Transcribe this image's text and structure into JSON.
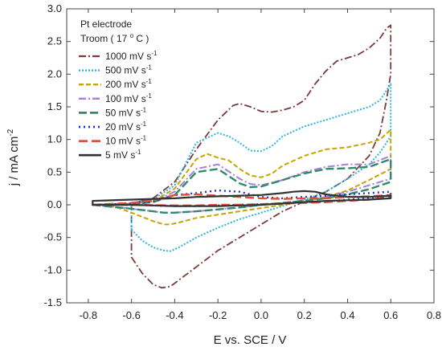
{
  "chart_data": {
    "type": "line",
    "title": "",
    "xlabel": "E vs. SCE / V",
    "ylabel": "j / mA cm",
    "ylabel_sup": "-2",
    "xlim": [
      -0.9,
      0.8
    ],
    "ylim": [
      -1.5,
      3.0
    ],
    "x_ticks": [
      -0.8,
      -0.6,
      -0.4,
      -0.2,
      0.0,
      0.2,
      0.4,
      0.6,
      0.8
    ],
    "x_tick_labels": [
      "-0.8",
      "-0.6",
      "-0.4",
      "-0.2",
      "0.0",
      "0.2",
      "0.4",
      "0.6",
      "0.8"
    ],
    "y_ticks": [
      -1.5,
      -1.0,
      -0.5,
      0.0,
      0.5,
      1.0,
      1.5,
      2.0,
      2.5,
      3.0
    ],
    "y_tick_labels": [
      "-1.5",
      "-1.0",
      "-0.5",
      "0.0",
      "0.5",
      "1.0",
      "1.5",
      "2.0",
      "2.5",
      "3.0"
    ],
    "grid": false,
    "legend_placement": "top-left",
    "legend_header": [
      "Pt electrode",
      "Troom ( 17 ",
      "o",
      " C )"
    ],
    "series": [
      {
        "name": "1000 mV s",
        "name_sup": "-1",
        "color": "#7b3b3b",
        "dash": "9,3,2,3",
        "width": 1.8,
        "x": [
          -0.6,
          -0.55,
          -0.5,
          -0.46,
          -0.42,
          -0.38,
          -0.3,
          -0.2,
          -0.1,
          0.0,
          0.1,
          0.2,
          0.3,
          0.4,
          0.5,
          0.55,
          0.58,
          0.6,
          0.6,
          0.58,
          0.55,
          0.5,
          0.45,
          0.4,
          0.35,
          0.3,
          0.25,
          0.2,
          0.15,
          0.1,
          0.05,
          0.0,
          -0.05,
          -0.1,
          -0.13,
          -0.2,
          -0.3,
          -0.4,
          -0.5,
          -0.6
        ],
        "y": [
          -0.8,
          -1.05,
          -1.22,
          -1.27,
          -1.25,
          -1.15,
          -0.95,
          -0.7,
          -0.5,
          -0.3,
          -0.1,
          0.05,
          0.2,
          0.4,
          0.75,
          1.1,
          1.6,
          2.0,
          2.75,
          2.7,
          2.55,
          2.4,
          2.3,
          2.25,
          2.2,
          2.05,
          1.85,
          1.6,
          1.5,
          1.45,
          1.42,
          1.43,
          1.5,
          1.55,
          1.52,
          1.3,
          0.85,
          0.35,
          0.1,
          0.02
        ]
      },
      {
        "name": "500 mV s",
        "name_sup": "-1",
        "color": "#2fb4e0",
        "dash": "2,2",
        "width": 2.0,
        "x": [
          -0.6,
          -0.55,
          -0.5,
          -0.45,
          -0.42,
          -0.38,
          -0.3,
          -0.2,
          -0.1,
          0.0,
          0.1,
          0.2,
          0.3,
          0.4,
          0.5,
          0.55,
          0.6,
          0.6,
          0.58,
          0.55,
          0.5,
          0.4,
          0.3,
          0.2,
          0.1,
          0.05,
          0.0,
          -0.05,
          -0.1,
          -0.15,
          -0.2,
          -0.3,
          -0.4,
          -0.5,
          -0.6
        ],
        "y": [
          -0.38,
          -0.55,
          -0.65,
          -0.7,
          -0.71,
          -0.65,
          -0.5,
          -0.35,
          -0.22,
          -0.12,
          -0.02,
          0.08,
          0.2,
          0.4,
          0.62,
          0.8,
          1.05,
          1.85,
          1.75,
          1.6,
          1.5,
          1.4,
          1.3,
          1.2,
          1.05,
          0.9,
          0.82,
          0.83,
          0.95,
          1.05,
          1.1,
          0.95,
          0.3,
          0.08,
          0.02
        ]
      },
      {
        "name": "200 mV s",
        "name_sup": "-1",
        "color": "#c9a400",
        "dash": "6,3",
        "width": 2.0,
        "x": [
          -0.7,
          -0.6,
          -0.5,
          -0.45,
          -0.42,
          -0.38,
          -0.3,
          -0.2,
          -0.1,
          0.0,
          0.1,
          0.2,
          0.3,
          0.4,
          0.5,
          0.6,
          0.6,
          0.55,
          0.5,
          0.4,
          0.3,
          0.2,
          0.1,
          0.05,
          0.0,
          -0.05,
          -0.1,
          -0.15,
          -0.2,
          -0.25,
          -0.3,
          -0.4,
          -0.5,
          -0.6,
          -0.7
        ],
        "y": [
          0.0,
          -0.12,
          -0.25,
          -0.3,
          -0.3,
          -0.27,
          -0.2,
          -0.15,
          -0.1,
          -0.05,
          0.0,
          0.05,
          0.12,
          0.22,
          0.38,
          0.55,
          1.15,
          1.0,
          0.95,
          0.88,
          0.85,
          0.75,
          0.6,
          0.48,
          0.42,
          0.45,
          0.55,
          0.68,
          0.72,
          0.78,
          0.7,
          0.25,
          0.05,
          0.02,
          0.0
        ]
      },
      {
        "name": "100 mV s",
        "name_sup": "-1",
        "color": "#a77fd6",
        "dash": "9,3,2,3",
        "width": 2.0,
        "x": [
          -0.78,
          -0.6,
          -0.5,
          -0.45,
          -0.4,
          -0.3,
          -0.2,
          -0.1,
          0.0,
          0.1,
          0.2,
          0.3,
          0.4,
          0.5,
          0.6,
          0.6,
          0.5,
          0.4,
          0.3,
          0.2,
          0.1,
          0.0,
          -0.05,
          -0.1,
          -0.2,
          -0.3,
          -0.4,
          -0.5,
          -0.6,
          -0.78
        ],
        "y": [
          0.0,
          -0.06,
          -0.1,
          -0.12,
          -0.12,
          -0.1,
          -0.07,
          -0.04,
          0.0,
          0.03,
          0.07,
          0.12,
          0.2,
          0.3,
          0.4,
          0.75,
          0.62,
          0.62,
          0.58,
          0.5,
          0.38,
          0.3,
          0.32,
          0.4,
          0.62,
          0.55,
          0.2,
          0.05,
          0.02,
          0.0
        ]
      },
      {
        "name": "50 mV s",
        "name_sup": "-1",
        "color": "#2e8b6e",
        "dash": "10,4",
        "width": 2.4,
        "x": [
          -0.78,
          -0.6,
          -0.5,
          -0.45,
          -0.4,
          -0.3,
          -0.2,
          -0.1,
          0.0,
          0.1,
          0.2,
          0.3,
          0.4,
          0.5,
          0.6,
          0.6,
          0.5,
          0.4,
          0.3,
          0.2,
          0.1,
          0.0,
          -0.05,
          -0.1,
          -0.2,
          -0.3,
          -0.4,
          -0.5,
          -0.6,
          -0.78
        ],
        "y": [
          0.0,
          -0.06,
          -0.1,
          -0.12,
          -0.12,
          -0.1,
          -0.07,
          -0.04,
          0.0,
          0.03,
          0.06,
          0.1,
          0.16,
          0.24,
          0.35,
          0.7,
          0.58,
          0.56,
          0.55,
          0.48,
          0.38,
          0.28,
          0.27,
          0.33,
          0.55,
          0.5,
          0.15,
          0.04,
          0.01,
          0.0
        ]
      },
      {
        "name": "20 mV s",
        "name_sup": "-1",
        "color": "#2035c8",
        "dash": "2,4",
        "width": 2.4,
        "x": [
          -0.78,
          -0.6,
          -0.4,
          -0.3,
          -0.2,
          -0.1,
          0.0,
          0.1,
          0.2,
          0.3,
          0.4,
          0.5,
          0.6,
          0.6,
          0.5,
          0.4,
          0.3,
          0.2,
          0.1,
          0.0,
          -0.1,
          -0.2,
          -0.3,
          -0.4,
          -0.5,
          -0.6,
          -0.78
        ],
        "y": [
          0.0,
          0.0,
          -0.02,
          -0.02,
          -0.01,
          0.0,
          0.01,
          0.02,
          0.04,
          0.05,
          0.08,
          0.1,
          0.15,
          0.2,
          0.18,
          0.16,
          0.14,
          0.12,
          0.1,
          0.12,
          0.2,
          0.22,
          0.18,
          0.15,
          0.05,
          0.02,
          0.0
        ]
      },
      {
        "name": "10 mV s",
        "name_sup": "-1",
        "color": "#e0503c",
        "dash": "11,5",
        "width": 2.4,
        "x": [
          -0.78,
          -0.6,
          -0.4,
          -0.3,
          -0.2,
          -0.1,
          0.0,
          0.1,
          0.2,
          0.3,
          0.4,
          0.5,
          0.6,
          0.6,
          0.5,
          0.4,
          0.3,
          0.2,
          0.1,
          0.0,
          -0.1,
          -0.2,
          -0.3,
          -0.4,
          -0.5,
          -0.6,
          -0.78
        ],
        "y": [
          0.0,
          0.0,
          -0.01,
          -0.01,
          0.0,
          0.0,
          0.01,
          0.02,
          0.03,
          0.04,
          0.06,
          0.08,
          0.12,
          0.15,
          0.13,
          0.12,
          0.1,
          0.1,
          0.09,
          0.1,
          0.12,
          0.14,
          0.16,
          0.15,
          0.07,
          0.03,
          0.0
        ]
      },
      {
        "name": "5 mV s",
        "name_sup": "-1",
        "color": "#333333",
        "dash": "",
        "width": 2.2,
        "x": [
          -0.78,
          -0.6,
          -0.4,
          -0.3,
          -0.2,
          -0.1,
          0.0,
          0.1,
          0.15,
          0.2,
          0.25,
          0.3,
          0.4,
          0.5,
          0.6,
          0.6,
          0.5,
          0.4,
          0.3,
          0.2,
          0.1,
          0.0,
          -0.1,
          -0.2,
          -0.3,
          -0.4,
          -0.5,
          -0.6,
          -0.78
        ],
        "y": [
          0.06,
          0.08,
          0.1,
          0.12,
          0.13,
          0.14,
          0.15,
          0.18,
          0.2,
          0.21,
          0.2,
          0.16,
          0.12,
          0.12,
          0.14,
          0.1,
          0.08,
          0.07,
          0.06,
          0.04,
          0.02,
          0.0,
          -0.01,
          -0.02,
          -0.02,
          -0.02,
          -0.01,
          0.0,
          0.0
        ]
      }
    ]
  }
}
